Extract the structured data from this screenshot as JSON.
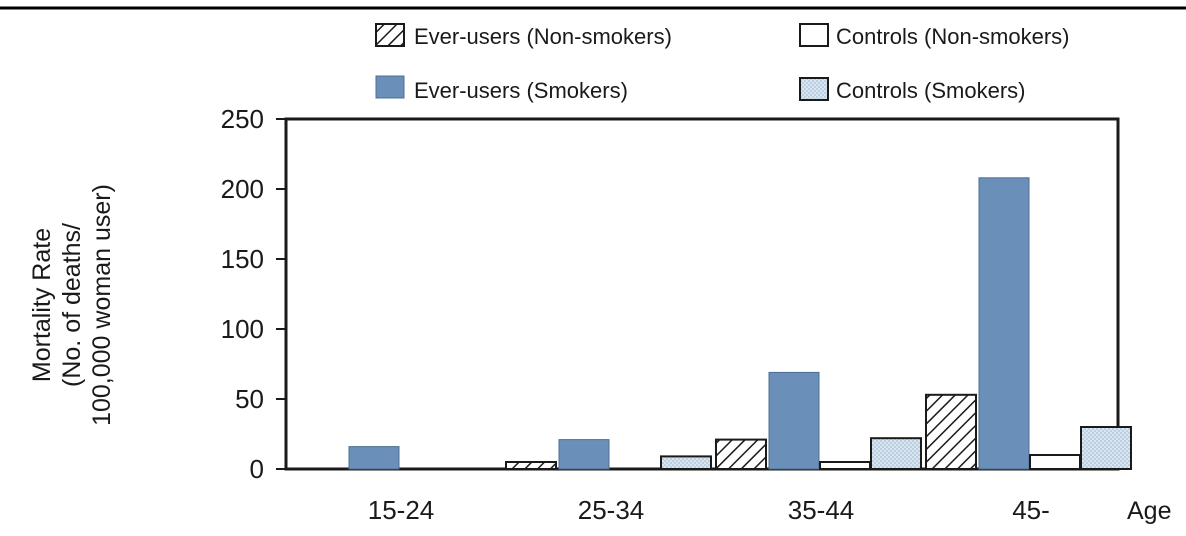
{
  "chart_data": {
    "type": "bar",
    "title": "",
    "xlabel": "Age",
    "ylabel_lines": [
      "Mortality Rate",
      "(No. of deaths/",
      "100,000 woman user)"
    ],
    "ylim": [
      0,
      250
    ],
    "yticks": [
      0,
      50,
      100,
      150,
      200,
      250
    ],
    "categories": [
      "15-24",
      "25-34",
      "35-44",
      "45-"
    ],
    "series": [
      {
        "name": "Ever-users (Non-smokers)",
        "key": "ever_nonsmokers",
        "style": "hatch",
        "values": [
          0,
          5,
          21,
          53
        ]
      },
      {
        "name": "Ever-users (Smokers)",
        "key": "ever_smokers",
        "style": "solid",
        "values": [
          16,
          21,
          69,
          208
        ]
      },
      {
        "name": "Controls (Non-smokers)",
        "key": "controls_nonsmokers",
        "style": "empty",
        "values": [
          0,
          0,
          5,
          10
        ]
      },
      {
        "name": "Controls (Smokers)",
        "key": "controls_smokers",
        "style": "dotted",
        "values": [
          0,
          9,
          22,
          30
        ]
      }
    ],
    "grid": false,
    "legend_position": "top",
    "colors": {
      "solid": "#6a8fb8",
      "dotted": "#cfe0f0",
      "hatch_stroke": "#1a1a1a"
    }
  }
}
